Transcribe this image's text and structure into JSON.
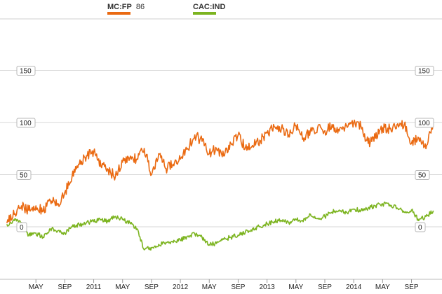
{
  "legend": [
    {
      "ticker": "MC:FP",
      "value": "86",
      "color": "#ea6a12"
    },
    {
      "ticker": "CAC:IND",
      "value": "",
      "color": "#7cb420"
    }
  ],
  "chart_data": {
    "type": "line",
    "title": "",
    "xlabel": "",
    "ylabel": "",
    "ylim": [
      -52,
      200
    ],
    "grid": "horizontal",
    "legend_position": "top-left",
    "y_ticks": [
      0,
      50,
      100,
      150
    ],
    "y_ticks_both_sides": true,
    "x_tick_labels": [
      "MAY",
      "SEP",
      "2011",
      "MAY",
      "SEP",
      "2012",
      "MAY",
      "SEP",
      "2013",
      "MAY",
      "SEP",
      "2014",
      "MAY",
      "SEP"
    ],
    "x_tick_dates": [
      "2010-05",
      "2010-09",
      "2011-01",
      "2011-05",
      "2011-09",
      "2012-01",
      "2012-05",
      "2012-09",
      "2013-01",
      "2013-05",
      "2013-09",
      "2014-01",
      "2014-05",
      "2014-09"
    ],
    "series": [
      {
        "name": "MC:FP",
        "color": "#ea6a12",
        "x": [
          "2010-01",
          "2010-02",
          "2010-03",
          "2010-04",
          "2010-05",
          "2010-06",
          "2010-07",
          "2010-08",
          "2010-09",
          "2010-10",
          "2010-11",
          "2010-12",
          "2011-01",
          "2011-02",
          "2011-03",
          "2011-04",
          "2011-05",
          "2011-06",
          "2011-07",
          "2011-08",
          "2011-09",
          "2011-10",
          "2011-11",
          "2011-12",
          "2012-01",
          "2012-02",
          "2012-03",
          "2012-04",
          "2012-05",
          "2012-06",
          "2012-07",
          "2012-08",
          "2012-09",
          "2012-10",
          "2012-11",
          "2012-12",
          "2013-01",
          "2013-02",
          "2013-03",
          "2013-04",
          "2013-05",
          "2013-06",
          "2013-07",
          "2013-08",
          "2013-09",
          "2013-10",
          "2013-11",
          "2013-12",
          "2014-01",
          "2014-02",
          "2014-03",
          "2014-04",
          "2014-05",
          "2014-06",
          "2014-07",
          "2014-08",
          "2014-09",
          "2014-10",
          "2014-11",
          "2014-12"
        ],
        "values": [
          4,
          12,
          20,
          16,
          20,
          15,
          25,
          22,
          33,
          48,
          60,
          68,
          72,
          58,
          55,
          48,
          62,
          66,
          65,
          75,
          50,
          70,
          56,
          60,
          65,
          75,
          88,
          82,
          70,
          75,
          68,
          80,
          88,
          76,
          78,
          83,
          90,
          96,
          95,
          88,
          97,
          85,
          92,
          95,
          92,
          98,
          92,
          97,
          100,
          96,
          80,
          85,
          95,
          94,
          98,
          98,
          80,
          85,
          75,
          100
        ]
      },
      {
        "name": "CAC:IND",
        "color": "#7cb420",
        "x": [
          "2010-01",
          "2010-02",
          "2010-03",
          "2010-04",
          "2010-05",
          "2010-06",
          "2010-07",
          "2010-08",
          "2010-09",
          "2010-10",
          "2010-11",
          "2010-12",
          "2011-01",
          "2011-02",
          "2011-03",
          "2011-04",
          "2011-05",
          "2011-06",
          "2011-07",
          "2011-08",
          "2011-09",
          "2011-10",
          "2011-11",
          "2011-12",
          "2012-01",
          "2012-02",
          "2012-03",
          "2012-04",
          "2012-05",
          "2012-06",
          "2012-07",
          "2012-08",
          "2012-09",
          "2012-10",
          "2012-11",
          "2012-12",
          "2013-01",
          "2013-02",
          "2013-03",
          "2013-04",
          "2013-05",
          "2013-06",
          "2013-07",
          "2013-08",
          "2013-09",
          "2013-10",
          "2013-11",
          "2013-12",
          "2014-01",
          "2014-02",
          "2014-03",
          "2014-04",
          "2014-05",
          "2014-06",
          "2014-07",
          "2014-08",
          "2014-09",
          "2014-10",
          "2014-11",
          "2014-12"
        ],
        "values": [
          2,
          6,
          4,
          -8,
          -6,
          -10,
          -2,
          -4,
          -6,
          0,
          2,
          4,
          5,
          7,
          5,
          10,
          7,
          4,
          -2,
          -22,
          -20,
          -17,
          -15,
          -15,
          -13,
          -9,
          -7,
          -10,
          -17,
          -16,
          -12,
          -10,
          -8,
          -5,
          -2,
          0,
          3,
          5,
          6,
          4,
          7,
          5,
          12,
          8,
          10,
          14,
          16,
          14,
          17,
          16,
          18,
          20,
          22,
          21,
          18,
          14,
          16,
          6,
          10,
          15
        ]
      }
    ]
  }
}
